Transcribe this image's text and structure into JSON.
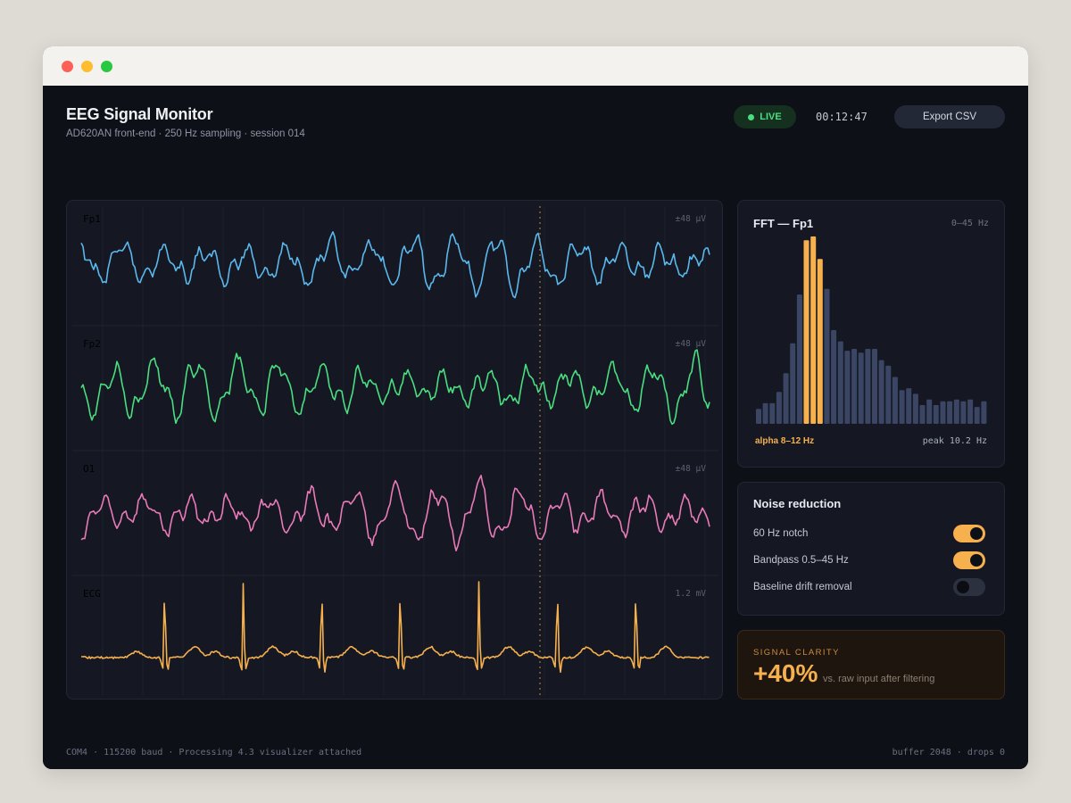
{
  "header": {
    "title": "EEG Signal Monitor",
    "subtitle": "AD620AN front-end · 250 Hz sampling · session 014",
    "live_label": "LIVE",
    "clock": "00:12:47",
    "export_label": "Export CSV"
  },
  "channels": [
    {
      "name": "Fp1",
      "scale": "±48 µV",
      "color": "#5ab8ec",
      "type": "eeg",
      "seed": 1
    },
    {
      "name": "Fp2",
      "scale": "±48 µV",
      "color": "#4ade80",
      "type": "eeg",
      "seed": 2
    },
    {
      "name": "O1",
      "scale": "±48 µV",
      "color": "#e97ab9",
      "type": "eeg",
      "seed": 3
    },
    {
      "name": "ECG",
      "scale": "1.2 mV",
      "color": "#f6b04e",
      "type": "ecg",
      "seed": 4
    }
  ],
  "fft": {
    "title": "FFT — Fp1",
    "range_label": "0–45 Hz",
    "band_label": "alpha 8–12 Hz",
    "peak_label": "peak 10.2 Hz",
    "bar_color": "#3b4564",
    "highlight_color": "#f6b04e",
    "highlight": [
      7,
      8,
      9
    ],
    "values": [
      0.08,
      0.11,
      0.11,
      0.17,
      0.27,
      0.43,
      0.69,
      0.98,
      1.0,
      0.88,
      0.72,
      0.5,
      0.44,
      0.39,
      0.4,
      0.38,
      0.4,
      0.4,
      0.34,
      0.31,
      0.25,
      0.18,
      0.19,
      0.16,
      0.1,
      0.13,
      0.1,
      0.12,
      0.12,
      0.13,
      0.12,
      0.13,
      0.09,
      0.12
    ]
  },
  "noise": {
    "title": "Noise reduction",
    "options": [
      {
        "label": "60 Hz notch",
        "on": true
      },
      {
        "label": "Bandpass 0.5–45 Hz",
        "on": true
      },
      {
        "label": "Baseline drift removal",
        "on": false
      }
    ]
  },
  "clarity": {
    "label": "SIGNAL CLARITY",
    "value": "+40%",
    "note": "vs. raw input after filtering"
  },
  "footer": {
    "left": "COM4 · 115200 baud · Processing 4.3 visualizer attached",
    "right": "buffer 2048 · drops 0"
  }
}
